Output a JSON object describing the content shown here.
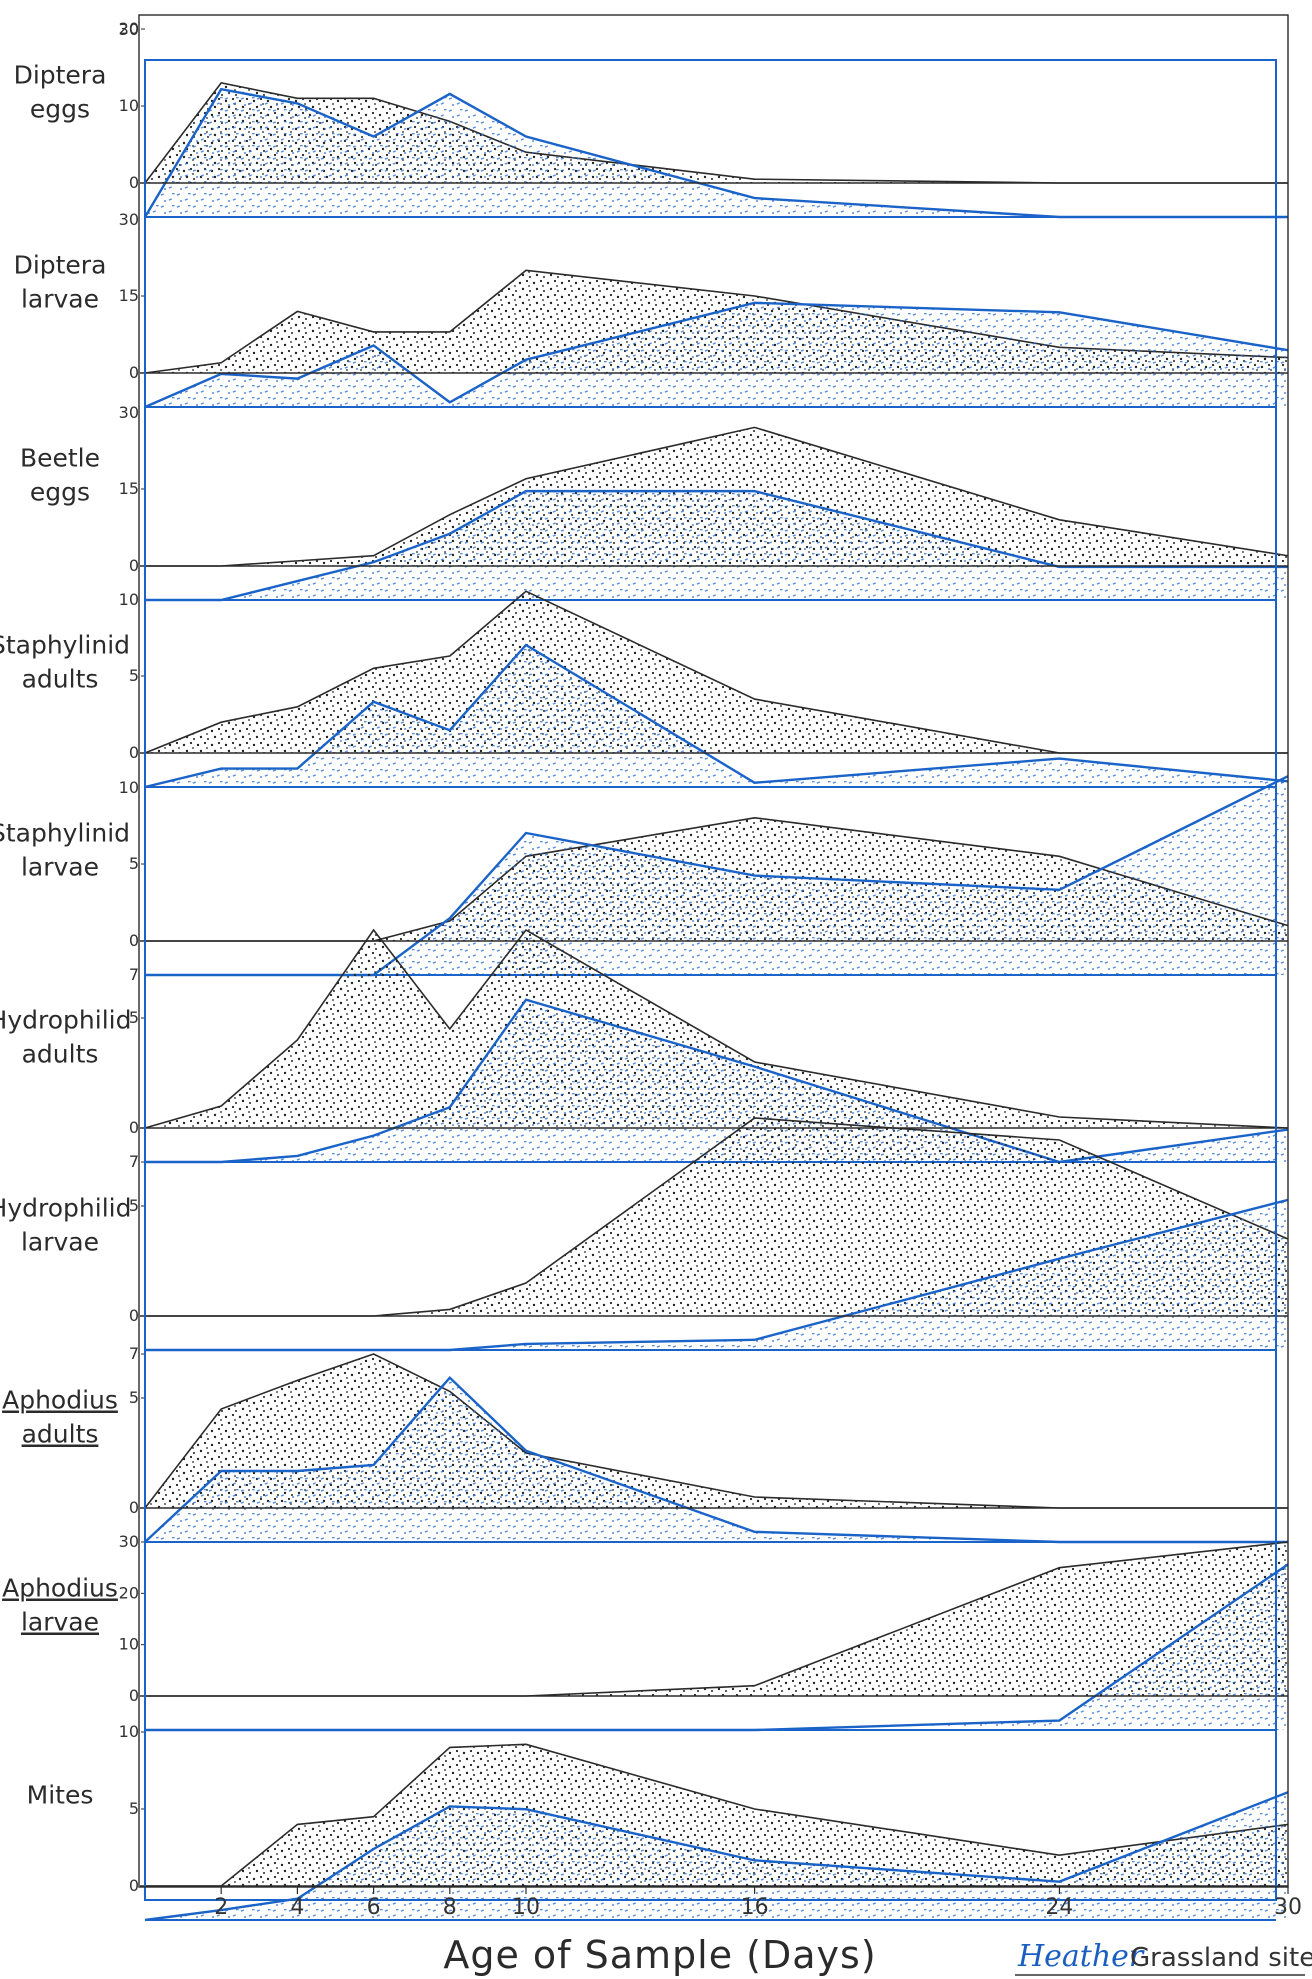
{
  "colors": {
    "black_series": "#2b2b2b",
    "blue_series": "#1a63c8",
    "frame": "#1a63c8"
  },
  "chart_data": {
    "type": "area",
    "xlabel": "Age of Sample (Days)",
    "x_ticks": [
      2,
      4,
      6,
      8,
      10,
      16,
      24,
      30
    ],
    "xlim": [
      0,
      30
    ],
    "grid": false,
    "legend": "none",
    "signature": {
      "name": "Heather",
      "rest": "Grassland site"
    },
    "panels": [
      {
        "label_lines": [
          "Diptera",
          "eggs"
        ],
        "underline": false,
        "black_ymax": 20,
        "black_ticks": [
          "20",
          "10",
          "0"
        ],
        "black_tick_values": [
          20,
          10,
          0
        ],
        "black": [
          [
            0,
            0
          ],
          [
            2,
            13
          ],
          [
            4,
            11
          ],
          [
            6,
            11
          ],
          [
            8,
            8
          ],
          [
            10,
            4
          ],
          [
            16,
            0.5
          ],
          [
            24,
            0
          ],
          [
            30,
            0
          ]
        ],
        "blue_ymax": 30,
        "blue_ticks": [
          "30"
        ],
        "blue": [
          [
            0,
            0
          ],
          [
            2,
            27
          ],
          [
            4,
            24
          ],
          [
            6,
            17
          ],
          [
            8,
            26
          ],
          [
            10,
            17
          ],
          [
            16,
            4
          ],
          [
            24,
            0
          ],
          [
            30,
            0
          ]
        ]
      },
      {
        "label_lines": [
          "Diptera",
          "larvae"
        ],
        "underline": false,
        "black_ymax": 30,
        "black_ticks": [
          "15",
          "0"
        ],
        "black_tick_values": [
          15,
          0
        ],
        "black": [
          [
            0,
            0
          ],
          [
            2,
            2
          ],
          [
            4,
            12
          ],
          [
            6,
            8
          ],
          [
            8,
            8
          ],
          [
            10,
            20
          ],
          [
            16,
            15
          ],
          [
            24,
            5
          ],
          [
            30,
            3
          ]
        ],
        "blue_ymax": 30,
        "blue_ticks": [
          "30"
        ],
        "blue": [
          [
            0,
            0
          ],
          [
            2,
            7
          ],
          [
            4,
            6
          ],
          [
            6,
            13
          ],
          [
            8,
            1
          ],
          [
            10,
            10
          ],
          [
            16,
            22
          ],
          [
            24,
            20
          ],
          [
            30,
            12
          ]
        ]
      },
      {
        "label_lines": [
          "Beetle",
          "eggs"
        ],
        "underline": false,
        "black_ymax": 30,
        "black_ticks": [
          "15",
          "0"
        ],
        "black_tick_values": [
          15,
          0
        ],
        "black": [
          [
            0,
            0
          ],
          [
            2,
            0
          ],
          [
            4,
            1
          ],
          [
            6,
            2
          ],
          [
            8,
            10
          ],
          [
            10,
            17
          ],
          [
            16,
            27
          ],
          [
            24,
            9
          ],
          [
            30,
            2
          ]
        ],
        "blue_ymax": 30,
        "blue_ticks": [
          "30"
        ],
        "blue": [
          [
            0,
            0
          ],
          [
            2,
            0
          ],
          [
            4,
            4
          ],
          [
            6,
            8
          ],
          [
            8,
            14
          ],
          [
            10,
            23
          ],
          [
            16,
            23
          ],
          [
            24,
            7
          ],
          [
            30,
            7
          ]
        ]
      },
      {
        "label_lines": [
          "Staphylinid",
          "adults"
        ],
        "underline": false,
        "black_ymax": 10,
        "black_ticks": [
          "5",
          "0"
        ],
        "black_tick_values": [
          5,
          0
        ],
        "black": [
          [
            0,
            0
          ],
          [
            2,
            2
          ],
          [
            4,
            3
          ],
          [
            6,
            5.5
          ],
          [
            8,
            6.3
          ],
          [
            10,
            10.5
          ],
          [
            16,
            3.5
          ],
          [
            24,
            0
          ],
          [
            30,
            0
          ]
        ],
        "blue_ymax": 10,
        "blue_ticks": [
          "10"
        ],
        "blue": [
          [
            0,
            0
          ],
          [
            2,
            1.3
          ],
          [
            4,
            1.3
          ],
          [
            6,
            6
          ],
          [
            8,
            4
          ],
          [
            10,
            10
          ],
          [
            16,
            0.3
          ],
          [
            24,
            2
          ],
          [
            30,
            0.4
          ]
        ]
      },
      {
        "label_lines": [
          "Staphylinid",
          "larvae"
        ],
        "underline": false,
        "black_ymax": 10,
        "black_ticks": [
          "5",
          "0"
        ],
        "black_tick_values": [
          5,
          0
        ],
        "black": [
          [
            0,
            0
          ],
          [
            2,
            0
          ],
          [
            4,
            0
          ],
          [
            6,
            0
          ],
          [
            8,
            1.3
          ],
          [
            10,
            5.5
          ],
          [
            16,
            8
          ],
          [
            24,
            5.5
          ],
          [
            30,
            1
          ]
        ],
        "blue_ymax": 10,
        "blue_ticks": [
          "10"
        ],
        "blue": [
          [
            0,
            0
          ],
          [
            2,
            0
          ],
          [
            4,
            0
          ],
          [
            6,
            0
          ],
          [
            8,
            4
          ],
          [
            10,
            10
          ],
          [
            16,
            7
          ],
          [
            24,
            6
          ],
          [
            30,
            14
          ]
        ]
      },
      {
        "label_lines": [
          "Hydrophilid",
          "adults"
        ],
        "underline": false,
        "black_ymax": 7,
        "black_ticks": [
          "5",
          "0"
        ],
        "black_tick_values": [
          5,
          0
        ],
        "black": [
          [
            0,
            0
          ],
          [
            2,
            1
          ],
          [
            4,
            4
          ],
          [
            6,
            9
          ],
          [
            8,
            4.5
          ],
          [
            10,
            9
          ],
          [
            16,
            3
          ],
          [
            24,
            0.5
          ],
          [
            30,
            0
          ]
        ],
        "blue_ymax": 7,
        "blue_ticks": [
          "7"
        ],
        "blue": [
          [
            0,
            0
          ],
          [
            2,
            0
          ],
          [
            4,
            0.3
          ],
          [
            6,
            1.3
          ],
          [
            8,
            2.7
          ],
          [
            10,
            8
          ],
          [
            16,
            4.7
          ],
          [
            24,
            0
          ],
          [
            30,
            1.6
          ]
        ]
      },
      {
        "label_lines": [
          "Hydrophilid",
          "larvae"
        ],
        "underline": false,
        "black_ymax": 7,
        "black_ticks": [
          "7",
          "5",
          "0"
        ],
        "black_tick_values": [
          7,
          5,
          0
        ],
        "black": [
          [
            0,
            0
          ],
          [
            2,
            0
          ],
          [
            4,
            0
          ],
          [
            6,
            0
          ],
          [
            8,
            0.3
          ],
          [
            10,
            1.5
          ],
          [
            16,
            9
          ],
          [
            24,
            8
          ],
          [
            30,
            3.5
          ]
        ],
        "blue_ymax": 7,
        "blue_ticks": [],
        "blue": [
          [
            0,
            0
          ],
          [
            2,
            0
          ],
          [
            4,
            0
          ],
          [
            6,
            0
          ],
          [
            8,
            0
          ],
          [
            10,
            0.3
          ],
          [
            16,
            0.5
          ],
          [
            24,
            4.5
          ],
          [
            30,
            7.4
          ]
        ]
      },
      {
        "label_lines": [
          "Aphodius",
          "adults"
        ],
        "underline": true,
        "black_ymax": 7,
        "black_ticks": [
          "7",
          "5",
          "0"
        ],
        "black_tick_values": [
          7,
          5,
          0
        ],
        "black": [
          [
            0,
            0
          ],
          [
            2,
            4.5
          ],
          [
            4,
            5.8
          ],
          [
            6,
            7
          ],
          [
            8,
            5.3
          ],
          [
            10,
            2.5
          ],
          [
            16,
            0.5
          ],
          [
            24,
            0
          ],
          [
            30,
            0
          ]
        ],
        "blue_ymax": 7,
        "blue_ticks": [],
        "blue": [
          [
            0,
            0
          ],
          [
            2,
            3.5
          ],
          [
            4,
            3.5
          ],
          [
            6,
            3.8
          ],
          [
            8,
            8.1
          ],
          [
            10,
            4.5
          ],
          [
            16,
            0.5
          ],
          [
            24,
            0
          ],
          [
            30,
            0
          ]
        ]
      },
      {
        "label_lines": [
          "Aphodius",
          "larvae"
        ],
        "underline": true,
        "black_ymax": 30,
        "black_ticks": [
          "30",
          "20",
          "10",
          "0"
        ],
        "black_tick_values": [
          30,
          20,
          10,
          0
        ],
        "black": [
          [
            0,
            0
          ],
          [
            2,
            0
          ],
          [
            4,
            0
          ],
          [
            6,
            0
          ],
          [
            8,
            0
          ],
          [
            10,
            0
          ],
          [
            16,
            2
          ],
          [
            24,
            25
          ],
          [
            30,
            30
          ]
        ],
        "blue_ymax": 30,
        "blue_ticks": [],
        "blue": [
          [
            0,
            0
          ],
          [
            2,
            0
          ],
          [
            4,
            0
          ],
          [
            6,
            0
          ],
          [
            8,
            0
          ],
          [
            10,
            0
          ],
          [
            16,
            0
          ],
          [
            24,
            2
          ],
          [
            30,
            35
          ]
        ]
      },
      {
        "label_lines": [
          "Mites"
        ],
        "underline": false,
        "black_ymax": 10,
        "black_ticks": [
          "10",
          "5",
          "0"
        ],
        "black_tick_values": [
          10,
          5,
          0
        ],
        "black": [
          [
            0,
            0
          ],
          [
            2,
            0
          ],
          [
            4,
            4
          ],
          [
            6,
            4.5
          ],
          [
            8,
            9
          ],
          [
            10,
            9.2
          ],
          [
            16,
            5
          ],
          [
            24,
            2
          ],
          [
            30,
            4
          ]
        ],
        "blue_ymax": 10,
        "blue_ticks": [],
        "blue": [
          [
            0,
            0
          ],
          [
            2,
            0.7
          ],
          [
            4,
            1.5
          ],
          [
            6,
            5
          ],
          [
            8,
            8
          ],
          [
            10,
            7.8
          ],
          [
            16,
            4.2
          ],
          [
            24,
            2.7
          ],
          [
            30,
            9
          ]
        ]
      }
    ]
  }
}
